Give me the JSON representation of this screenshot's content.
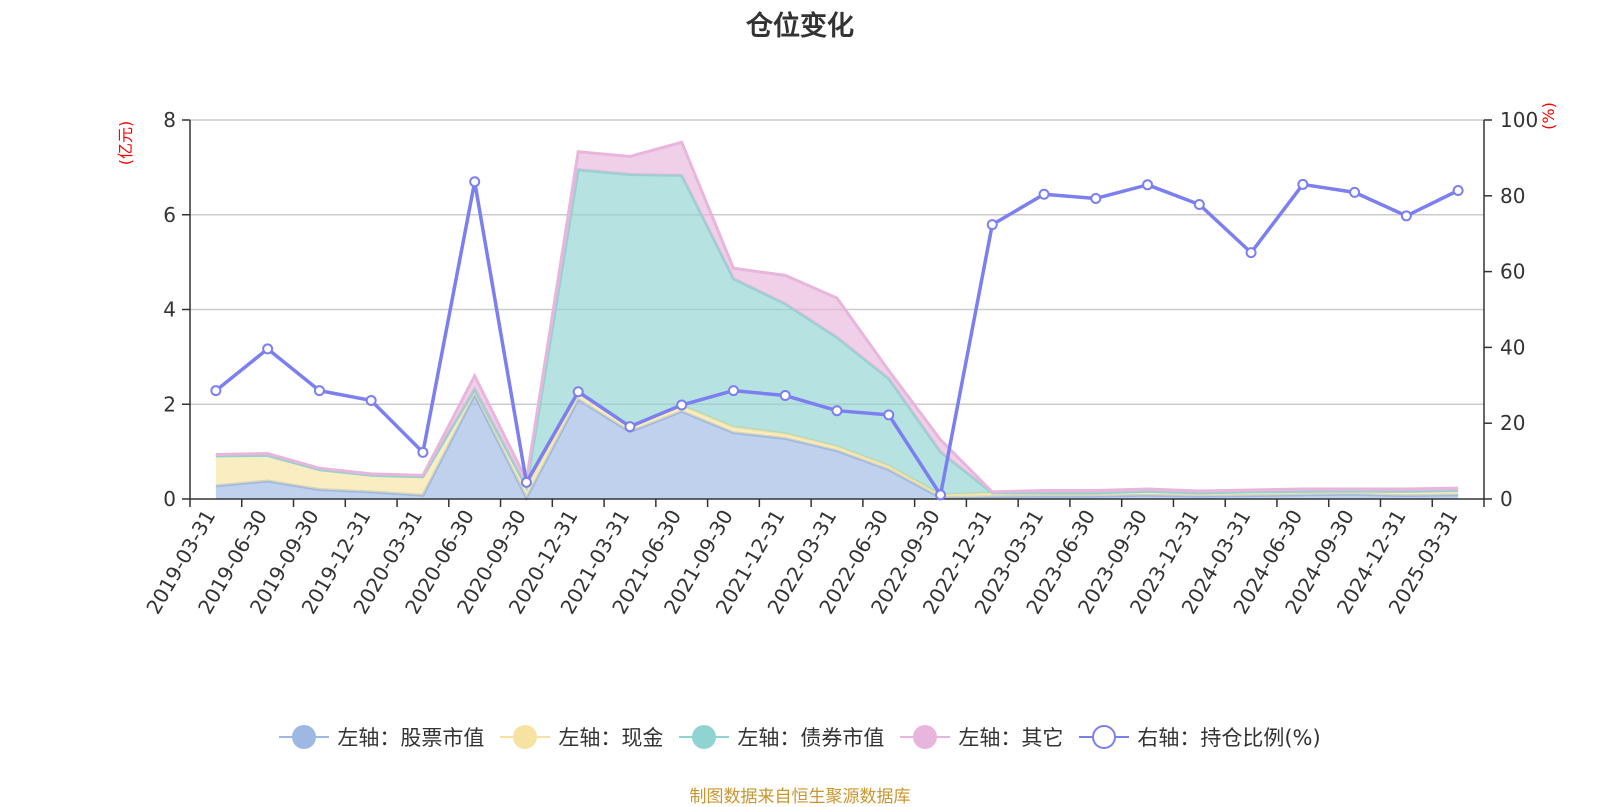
{
  "title": "仓位变化",
  "source": "制图数据来自恒生聚源数据库",
  "chart_data": {
    "type": "area",
    "categories": [
      "2019-03-31",
      "2019-06-30",
      "2019-09-30",
      "2019-12-31",
      "2020-03-31",
      "2020-06-30",
      "2020-09-30",
      "2020-12-31",
      "2021-03-31",
      "2021-06-30",
      "2021-09-30",
      "2021-12-31",
      "2022-03-31",
      "2022-06-30",
      "2022-09-30",
      "2022-12-31",
      "2023-03-31",
      "2023-06-30",
      "2023-09-30",
      "2023-12-31",
      "2024-03-31",
      "2024-06-30",
      "2024-09-30",
      "2024-12-31",
      "2025-03-31"
    ],
    "left_axis": {
      "unit": "(亿元)",
      "ylim": [
        0,
        8
      ],
      "ticks": [
        "0",
        "2",
        "4",
        "6",
        "8"
      ]
    },
    "right_axis": {
      "unit": "(%)",
      "ylim": [
        0,
        100
      ],
      "ticks": [
        "0",
        "20",
        "40",
        "60",
        "80",
        "100"
      ]
    },
    "grid": true,
    "legend_position": "bottom",
    "series": [
      {
        "name": "左轴：股票市值",
        "axis": "left",
        "kind": "stacked-area",
        "color": "#9db8e3",
        "values": [
          0.28,
          0.38,
          0.2,
          0.15,
          0.08,
          2.2,
          0.03,
          2.1,
          1.42,
          1.85,
          1.4,
          1.28,
          1.02,
          0.62,
          0.03,
          0.05,
          0.06,
          0.06,
          0.08,
          0.06,
          0.07,
          0.09,
          0.1,
          0.07,
          0.09
        ]
      },
      {
        "name": "左轴：现金",
        "axis": "left",
        "kind": "stacked-area",
        "color": "#f7e3a1",
        "values": [
          0.63,
          0.54,
          0.42,
          0.35,
          0.39,
          0.12,
          0.22,
          0.15,
          0.13,
          0.12,
          0.12,
          0.1,
          0.09,
          0.08,
          0.06,
          0.08,
          0.07,
          0.07,
          0.08,
          0.07,
          0.08,
          0.07,
          0.07,
          0.09,
          0.09
        ]
      },
      {
        "name": "左轴：债券市值",
        "axis": "left",
        "kind": "stacked-area",
        "color": "#8fd4d1",
        "values": [
          0,
          0,
          0,
          0,
          0,
          0,
          0,
          4.7,
          5.3,
          4.86,
          3.13,
          2.74,
          2.3,
          1.84,
          0.9,
          0,
          0,
          0,
          0,
          0,
          0,
          0,
          0,
          0,
          0
        ]
      },
      {
        "name": "左轴：其它",
        "axis": "left",
        "kind": "stacked-area",
        "color": "#e8b6dc",
        "values": [
          0.03,
          0.04,
          0.03,
          0.03,
          0.03,
          0.28,
          0.15,
          0.38,
          0.38,
          0.7,
          0.22,
          0.6,
          0.83,
          0.17,
          0.26,
          0.02,
          0.05,
          0.05,
          0.05,
          0.04,
          0.04,
          0.05,
          0.04,
          0.05,
          0.05
        ]
      },
      {
        "name": "右轴：持仓比例(%)",
        "axis": "right",
        "kind": "line",
        "color": "#7b7ff0",
        "values": [
          28.6,
          39.6,
          28.6,
          26.0,
          12.3,
          83.7,
          4.4,
          28.3,
          19.1,
          24.8,
          28.6,
          27.3,
          23.3,
          22.2,
          1.1,
          72.4,
          80.4,
          79.3,
          82.9,
          77.7,
          65.0,
          83.0,
          80.9,
          74.7,
          81.4
        ]
      }
    ]
  }
}
